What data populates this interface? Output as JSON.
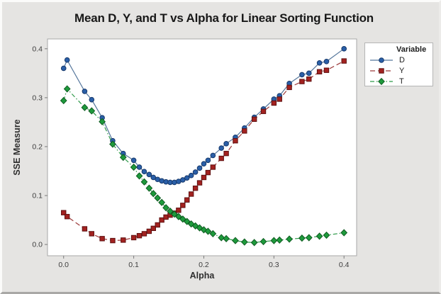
{
  "colors": {
    "background": "#e5e4e2",
    "plot_background": "#ffffff",
    "plot_border": "#a8a8a8",
    "tick": "#7a7a7a",
    "tick_label": "#3d3d3d",
    "series_d_blue": "#2a5fa8",
    "series_y_red": "#a32220",
    "series_t_green": "#1e9a3c"
  },
  "chart_data": {
    "type": "line",
    "title": "Mean D, Y, and T vs Alpha for Linear Sorting Function",
    "xlabel": "Alpha",
    "ylabel": "SSE Measure",
    "xlim": [
      -0.023,
      0.418
    ],
    "ylim": [
      -0.023,
      0.42
    ],
    "xticks": [
      0.0,
      0.1,
      0.2,
      0.3,
      0.4
    ],
    "yticks": [
      0.0,
      0.1,
      0.2,
      0.3,
      0.4
    ],
    "tick_decimals": 1,
    "grid": false,
    "legend": {
      "title": "Variable",
      "position": "outside-top-right"
    },
    "x": [
      0.0,
      0.005,
      0.03,
      0.04,
      0.055,
      0.07,
      0.085,
      0.1,
      0.108,
      0.115,
      0.122,
      0.128,
      0.134,
      0.14,
      0.146,
      0.152,
      0.158,
      0.164,
      0.17,
      0.176,
      0.182,
      0.188,
      0.194,
      0.2,
      0.206,
      0.213,
      0.225,
      0.232,
      0.245,
      0.258,
      0.272,
      0.285,
      0.3,
      0.308,
      0.322,
      0.34,
      0.35,
      0.365,
      0.375,
      0.4
    ],
    "series": [
      {
        "name": "D",
        "marker": "circle",
        "line_style": "solid",
        "dash": "",
        "marker_color": "#2a5fa8",
        "edge_color": "#17396b",
        "line_color": "#56779c",
        "values": [
          0.36,
          0.377,
          0.313,
          0.296,
          0.259,
          0.212,
          0.186,
          0.172,
          0.158,
          0.149,
          0.143,
          0.137,
          0.133,
          0.13,
          0.128,
          0.127,
          0.127,
          0.129,
          0.132,
          0.136,
          0.141,
          0.148,
          0.156,
          0.165,
          0.172,
          0.182,
          0.197,
          0.206,
          0.219,
          0.238,
          0.26,
          0.277,
          0.297,
          0.304,
          0.329,
          0.347,
          0.35,
          0.371,
          0.374,
          0.4
        ]
      },
      {
        "name": "Y",
        "marker": "square",
        "line_style": "dashed",
        "dash": "7,4",
        "marker_color": "#a32220",
        "edge_color": "#5e1010",
        "line_color": "#9c3a3a",
        "values": [
          0.065,
          0.057,
          0.032,
          0.022,
          0.012,
          0.008,
          0.009,
          0.014,
          0.018,
          0.022,
          0.027,
          0.033,
          0.04,
          0.05,
          0.056,
          0.06,
          0.064,
          0.07,
          0.08,
          0.091,
          0.103,
          0.115,
          0.126,
          0.137,
          0.147,
          0.158,
          0.176,
          0.186,
          0.212,
          0.232,
          0.256,
          0.272,
          0.289,
          0.297,
          0.321,
          0.333,
          0.338,
          0.353,
          0.356,
          0.375
        ]
      },
      {
        "name": "T",
        "marker": "diamond",
        "line_style": "dash-dot",
        "dash": "6,3,1.5,3",
        "marker_color": "#1e9a3c",
        "edge_color": "#0f5c21",
        "line_color": "#2f9a4a",
        "values": [
          0.294,
          0.318,
          0.28,
          0.273,
          0.251,
          0.205,
          0.178,
          0.158,
          0.14,
          0.128,
          0.115,
          0.104,
          0.095,
          0.086,
          0.075,
          0.068,
          0.062,
          0.057,
          0.052,
          0.047,
          0.042,
          0.038,
          0.034,
          0.03,
          0.027,
          0.022,
          0.014,
          0.012,
          0.008,
          0.005,
          0.004,
          0.006,
          0.008,
          0.009,
          0.011,
          0.013,
          0.014,
          0.017,
          0.019,
          0.024
        ]
      }
    ]
  }
}
